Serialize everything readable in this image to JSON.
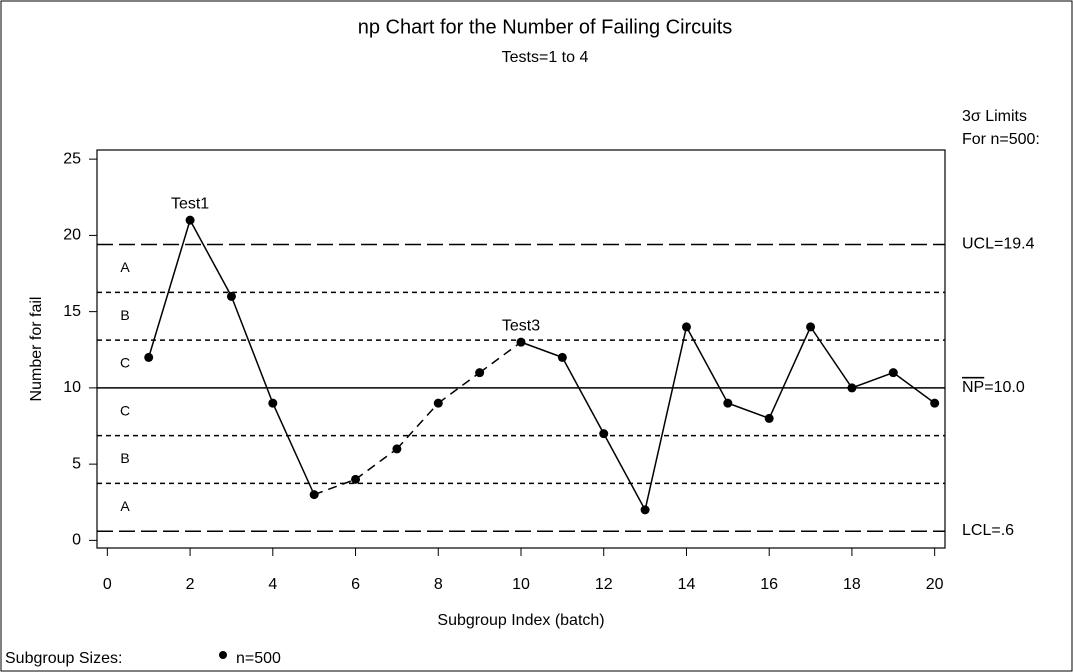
{
  "chart_data": {
    "type": "line",
    "title": "np Chart for the Number of Failing Circuits",
    "subtitle": "Tests=1 to 4",
    "x_label": "Subgroup Index (batch)",
    "y_label": "Number for fail",
    "limits_title": [
      "3σ Limits",
      "For n=500:"
    ],
    "x": [
      1,
      2,
      3,
      4,
      5,
      6,
      7,
      8,
      9,
      10,
      11,
      12,
      13,
      14,
      15,
      16,
      17,
      18,
      19,
      20
    ],
    "values": [
      12,
      21,
      16,
      9,
      3,
      4,
      6,
      9,
      11,
      13,
      12,
      7,
      2,
      14,
      9,
      8,
      14,
      10,
      11,
      9
    ],
    "color": "#000000",
    "xlim": [
      -0.25,
      20.25
    ],
    "xticks": [
      0,
      2,
      4,
      6,
      8,
      10,
      12,
      14,
      16,
      18,
      20
    ],
    "ylim": [
      -0.5,
      25.6
    ],
    "yticks": [
      0,
      5,
      10,
      15,
      20,
      25
    ],
    "ucl": {
      "name": "UCL",
      "value": 19.4,
      "label": "=19.4"
    },
    "center": {
      "name": "NP",
      "value": 10.0,
      "label": "=10.0"
    },
    "lcl": {
      "name": "LCL",
      "value": 0.6,
      "label": "=.6"
    },
    "zone_lines": [
      16.26,
      13.13,
      6.87,
      3.74
    ],
    "zones": [
      "A",
      "B",
      "C",
      "C",
      "B",
      "A"
    ],
    "annotations": [
      {
        "text": "Test1",
        "x": 2,
        "y": 21
      },
      {
        "text": "Test3",
        "x": 10,
        "y": 13,
        "trend_from": 5
      }
    ],
    "legend_title": "Subgroup Sizes:",
    "legend_entry": "n=500"
  }
}
